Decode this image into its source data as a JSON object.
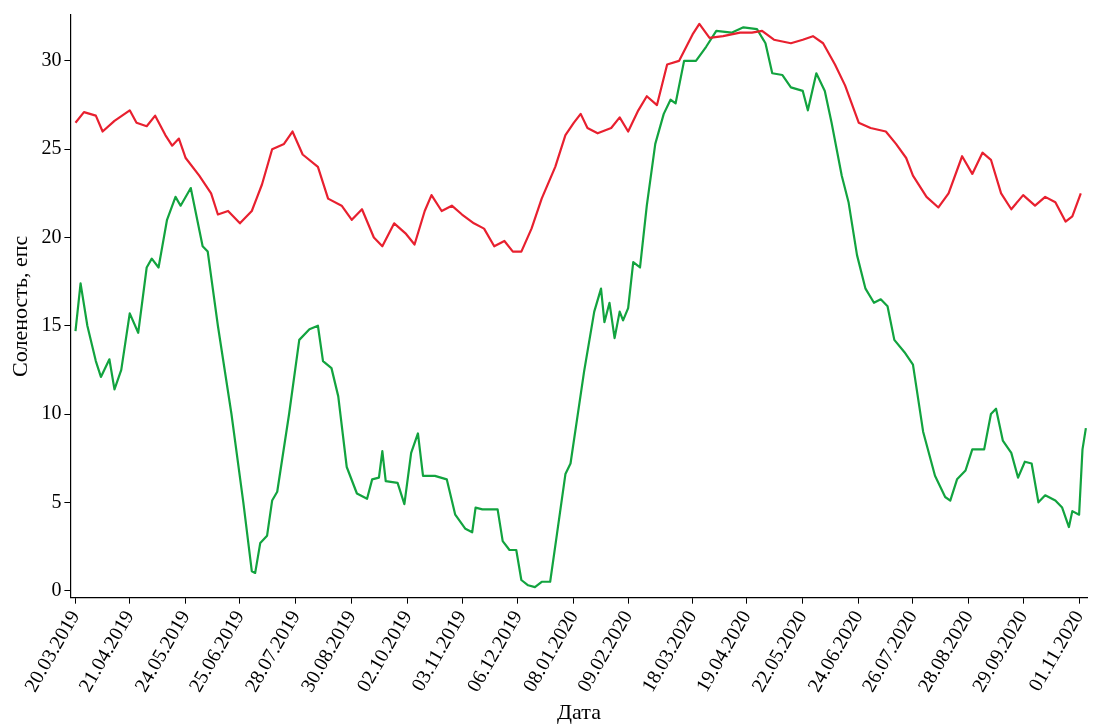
{
  "chart_data": {
    "type": "line",
    "xlabel": "Дата",
    "ylabel": "Соленость, епс",
    "xlim": [
      "2019-03-17",
      "2020-11-06"
    ],
    "ylim": [
      -0.4,
      32.6
    ],
    "yticks": [
      0,
      5,
      10,
      15,
      20,
      25,
      30
    ],
    "xticks": [
      {
        "value": "2019-03-20",
        "label": "20.03.2019"
      },
      {
        "value": "2019-04-21",
        "label": "21.04.2019"
      },
      {
        "value": "2019-05-24",
        "label": "24.05.2019"
      },
      {
        "value": "2019-06-25",
        "label": "25.06.2019"
      },
      {
        "value": "2019-07-28",
        "label": "28.07.2019"
      },
      {
        "value": "2019-08-30",
        "label": "30.08.2019"
      },
      {
        "value": "2019-10-02",
        "label": "02.10.2019"
      },
      {
        "value": "2019-11-03",
        "label": "03.11.2019"
      },
      {
        "value": "2019-12-06",
        "label": "06.12.2019"
      },
      {
        "value": "2020-01-08",
        "label": "08.01.2020"
      },
      {
        "value": "2020-02-09",
        "label": "09.02.2020"
      },
      {
        "value": "2020-03-18",
        "label": "18.03.2020"
      },
      {
        "value": "2020-04-19",
        "label": "19.04.2020"
      },
      {
        "value": "2020-05-22",
        "label": "22.05.2020"
      },
      {
        "value": "2020-06-24",
        "label": "24.06.2020"
      },
      {
        "value": "2020-07-26",
        "label": "26.07.2020"
      },
      {
        "value": "2020-08-28",
        "label": "28.08.2020"
      },
      {
        "value": "2020-09-29",
        "label": "29.09.2020"
      },
      {
        "value": "2020-11-01",
        "label": "01.11.2020"
      }
    ],
    "grid": false,
    "legend": false,
    "marker": "none",
    "line_style": "solid",
    "series": [
      {
        "color": "#e8202f",
        "x": [
          "2019-03-20",
          "2019-03-25",
          "2019-04-01",
          "2019-04-05",
          "2019-04-12",
          "2019-04-18",
          "2019-04-21",
          "2019-04-25",
          "2019-05-01",
          "2019-05-06",
          "2019-05-12",
          "2019-05-16",
          "2019-05-20",
          "2019-05-24",
          "2019-06-01",
          "2019-06-08",
          "2019-06-12",
          "2019-06-18",
          "2019-06-25",
          "2019-07-02",
          "2019-07-08",
          "2019-07-14",
          "2019-07-21",
          "2019-07-26",
          "2019-08-01",
          "2019-08-10",
          "2019-08-16",
          "2019-08-24",
          "2019-08-30",
          "2019-09-05",
          "2019-09-12",
          "2019-09-17",
          "2019-09-24",
          "2019-10-01",
          "2019-10-06",
          "2019-10-12",
          "2019-10-16",
          "2019-10-22",
          "2019-10-28",
          "2019-11-03",
          "2019-11-10",
          "2019-11-16",
          "2019-11-22",
          "2019-11-28",
          "2019-12-03",
          "2019-12-08",
          "2019-12-14",
          "2019-12-20",
          "2019-12-28",
          "2020-01-03",
          "2020-01-08",
          "2020-01-12",
          "2020-01-16",
          "2020-01-22",
          "2020-01-30",
          "2020-02-04",
          "2020-02-09",
          "2020-02-15",
          "2020-02-20",
          "2020-02-26",
          "2020-03-03",
          "2020-03-10",
          "2020-03-18",
          "2020-03-22",
          "2020-03-28",
          "2020-04-05",
          "2020-04-15",
          "2020-04-22",
          "2020-04-28",
          "2020-05-05",
          "2020-05-15",
          "2020-05-22",
          "2020-05-28",
          "2020-06-03",
          "2020-06-10",
          "2020-06-16",
          "2020-06-24",
          "2020-07-01",
          "2020-07-10",
          "2020-07-16",
          "2020-07-22",
          "2020-07-26",
          "2020-08-03",
          "2020-08-10",
          "2020-08-16",
          "2020-08-24",
          "2020-08-30",
          "2020-09-05",
          "2020-09-10",
          "2020-09-16",
          "2020-09-22",
          "2020-09-29",
          "2020-10-06",
          "2020-10-12",
          "2020-10-18",
          "2020-10-24",
          "2020-10-28",
          "2020-11-02"
        ],
        "values": [
          26.5,
          27.1,
          26.9,
          26.0,
          26.6,
          27.0,
          27.2,
          26.5,
          26.3,
          26.9,
          25.8,
          25.2,
          25.6,
          24.5,
          23.5,
          22.5,
          21.3,
          21.5,
          20.8,
          21.5,
          23,
          25,
          25.3,
          26,
          24.7,
          24,
          22.2,
          21.8,
          21.0,
          21.6,
          20.0,
          19.5,
          20.8,
          20.2,
          19.6,
          21.5,
          22.4,
          21.5,
          21.8,
          21.3,
          20.8,
          20.5,
          19.5,
          19.8,
          19.2,
          19.2,
          20.5,
          22.2,
          24,
          25.8,
          26.5,
          27.0,
          26.2,
          25.9,
          26.2,
          26.8,
          26.0,
          27.2,
          28.0,
          27.5,
          29.8,
          30.0,
          31.5,
          32.1,
          31.3,
          31.4,
          31.6,
          31.6,
          31.7,
          31.2,
          31.0,
          31.2,
          31.4,
          31.0,
          29.8,
          28.6,
          26.5,
          26.2,
          26.0,
          25.3,
          24.5,
          23.5,
          22.3,
          21.7,
          22.5,
          24.6,
          23.6,
          24.8,
          24.4,
          22.5,
          21.6,
          22.4,
          21.8,
          22.3,
          22.0,
          20.9,
          21.2,
          22.5
        ]
      },
      {
        "color": "#12a33f",
        "x": [
          "2019-03-20",
          "2019-03-23",
          "2019-03-27",
          "2019-04-01",
          "2019-04-04",
          "2019-04-09",
          "2019-04-12",
          "2019-04-16",
          "2019-04-21",
          "2019-04-26",
          "2019-05-01",
          "2019-05-04",
          "2019-05-08",
          "2019-05-13",
          "2019-05-18",
          "2019-05-21",
          "2019-05-27",
          "2019-06-03",
          "2019-06-06",
          "2019-06-12",
          "2019-06-20",
          "2019-06-27",
          "2019-07-02",
          "2019-07-04",
          "2019-07-07",
          "2019-07-11",
          "2019-07-14",
          "2019-07-17",
          "2019-07-24",
          "2019-07-30",
          "2019-08-05",
          "2019-08-10",
          "2019-08-13",
          "2019-08-18",
          "2019-08-22",
          "2019-08-27",
          "2019-09-02",
          "2019-09-08",
          "2019-09-11",
          "2019-09-15",
          "2019-09-17",
          "2019-09-19",
          "2019-09-26",
          "2019-09-30",
          "2019-10-04",
          "2019-10-08",
          "2019-10-11",
          "2019-10-18",
          "2019-10-25",
          "2019-10-30",
          "2019-11-05",
          "2019-11-09",
          "2019-11-11",
          "2019-11-15",
          "2019-11-24",
          "2019-11-27",
          "2019-12-01",
          "2019-12-05",
          "2019-12-08",
          "2019-12-12",
          "2019-12-16",
          "2019-12-20",
          "2019-12-25",
          "2019-12-29",
          "2020-01-03",
          "2020-01-06",
          "2020-01-10",
          "2020-01-14",
          "2020-01-20",
          "2020-01-24",
          "2020-01-26",
          "2020-01-29",
          "2020-02-01",
          "2020-02-04",
          "2020-02-06",
          "2020-02-09",
          "2020-02-12",
          "2020-02-16",
          "2020-02-20",
          "2020-02-25",
          "2020-03-01",
          "2020-03-05",
          "2020-03-08",
          "2020-03-13",
          "2020-03-20",
          "2020-03-26",
          "2020-04-01",
          "2020-04-10",
          "2020-04-17",
          "2020-04-25",
          "2020-04-30",
          "2020-05-04",
          "2020-05-10",
          "2020-05-15",
          "2020-05-22",
          "2020-05-25",
          "2020-05-30",
          "2020-06-04",
          "2020-06-08",
          "2020-06-14",
          "2020-06-18",
          "2020-06-23",
          "2020-06-28",
          "2020-07-03",
          "2020-07-07",
          "2020-07-11",
          "2020-07-15",
          "2020-07-21",
          "2020-07-26",
          "2020-08-01",
          "2020-08-08",
          "2020-08-14",
          "2020-08-17",
          "2020-08-21",
          "2020-08-26",
          "2020-08-30",
          "2020-09-06",
          "2020-09-10",
          "2020-09-13",
          "2020-09-17",
          "2020-09-22",
          "2020-09-26",
          "2020-09-30",
          "2020-10-04",
          "2020-10-08",
          "2020-10-12",
          "2020-10-18",
          "2020-10-22",
          "2020-10-26",
          "2020-10-28",
          "2020-11-01",
          "2020-11-03",
          "2020-11-05"
        ],
        "values": [
          14.7,
          17.4,
          15,
          13,
          12.1,
          13.1,
          11.4,
          12.5,
          15.7,
          14.6,
          18.3,
          18.8,
          18.3,
          21,
          22.3,
          21.8,
          22.8,
          19.5,
          19.2,
          15,
          10,
          5,
          1.1,
          1.0,
          2.7,
          3.1,
          5.1,
          5.6,
          10,
          14.2,
          14.8,
          15.0,
          13.0,
          12.6,
          11,
          7,
          5.5,
          5.2,
          6.3,
          6.4,
          7.9,
          6.2,
          6.1,
          4.9,
          7.8,
          8.9,
          6.5,
          6.5,
          6.3,
          4.3,
          3.5,
          3.3,
          4.7,
          4.6,
          4.6,
          2.8,
          2.3,
          2.3,
          0.6,
          0.3,
          0.2,
          0.5,
          0.5,
          3.2,
          6.6,
          7.2,
          9.8,
          12.4,
          15.8,
          17.1,
          15.2,
          16.3,
          14.3,
          15.8,
          15.3,
          16.0,
          18.6,
          18.3,
          21.8,
          25.3,
          27.0,
          27.8,
          27.6,
          30.0,
          30.0,
          30.8,
          31.7,
          31.6,
          31.9,
          31.8,
          31.0,
          29.3,
          29.2,
          28.5,
          28.3,
          27.2,
          29.3,
          28.3,
          26.5,
          23.5,
          22,
          19,
          17.1,
          16.3,
          16.5,
          16.1,
          14.2,
          13.5,
          12.8,
          9,
          6.5,
          5.3,
          5.1,
          6.3,
          6.8,
          8.0,
          8.0,
          10.0,
          10.3,
          8.5,
          7.8,
          6.4,
          7.3,
          7.2,
          5.0,
          5.4,
          5.1,
          4.7,
          3.6,
          4.5,
          4.3,
          8.0,
          9.2
        ]
      }
    ]
  }
}
